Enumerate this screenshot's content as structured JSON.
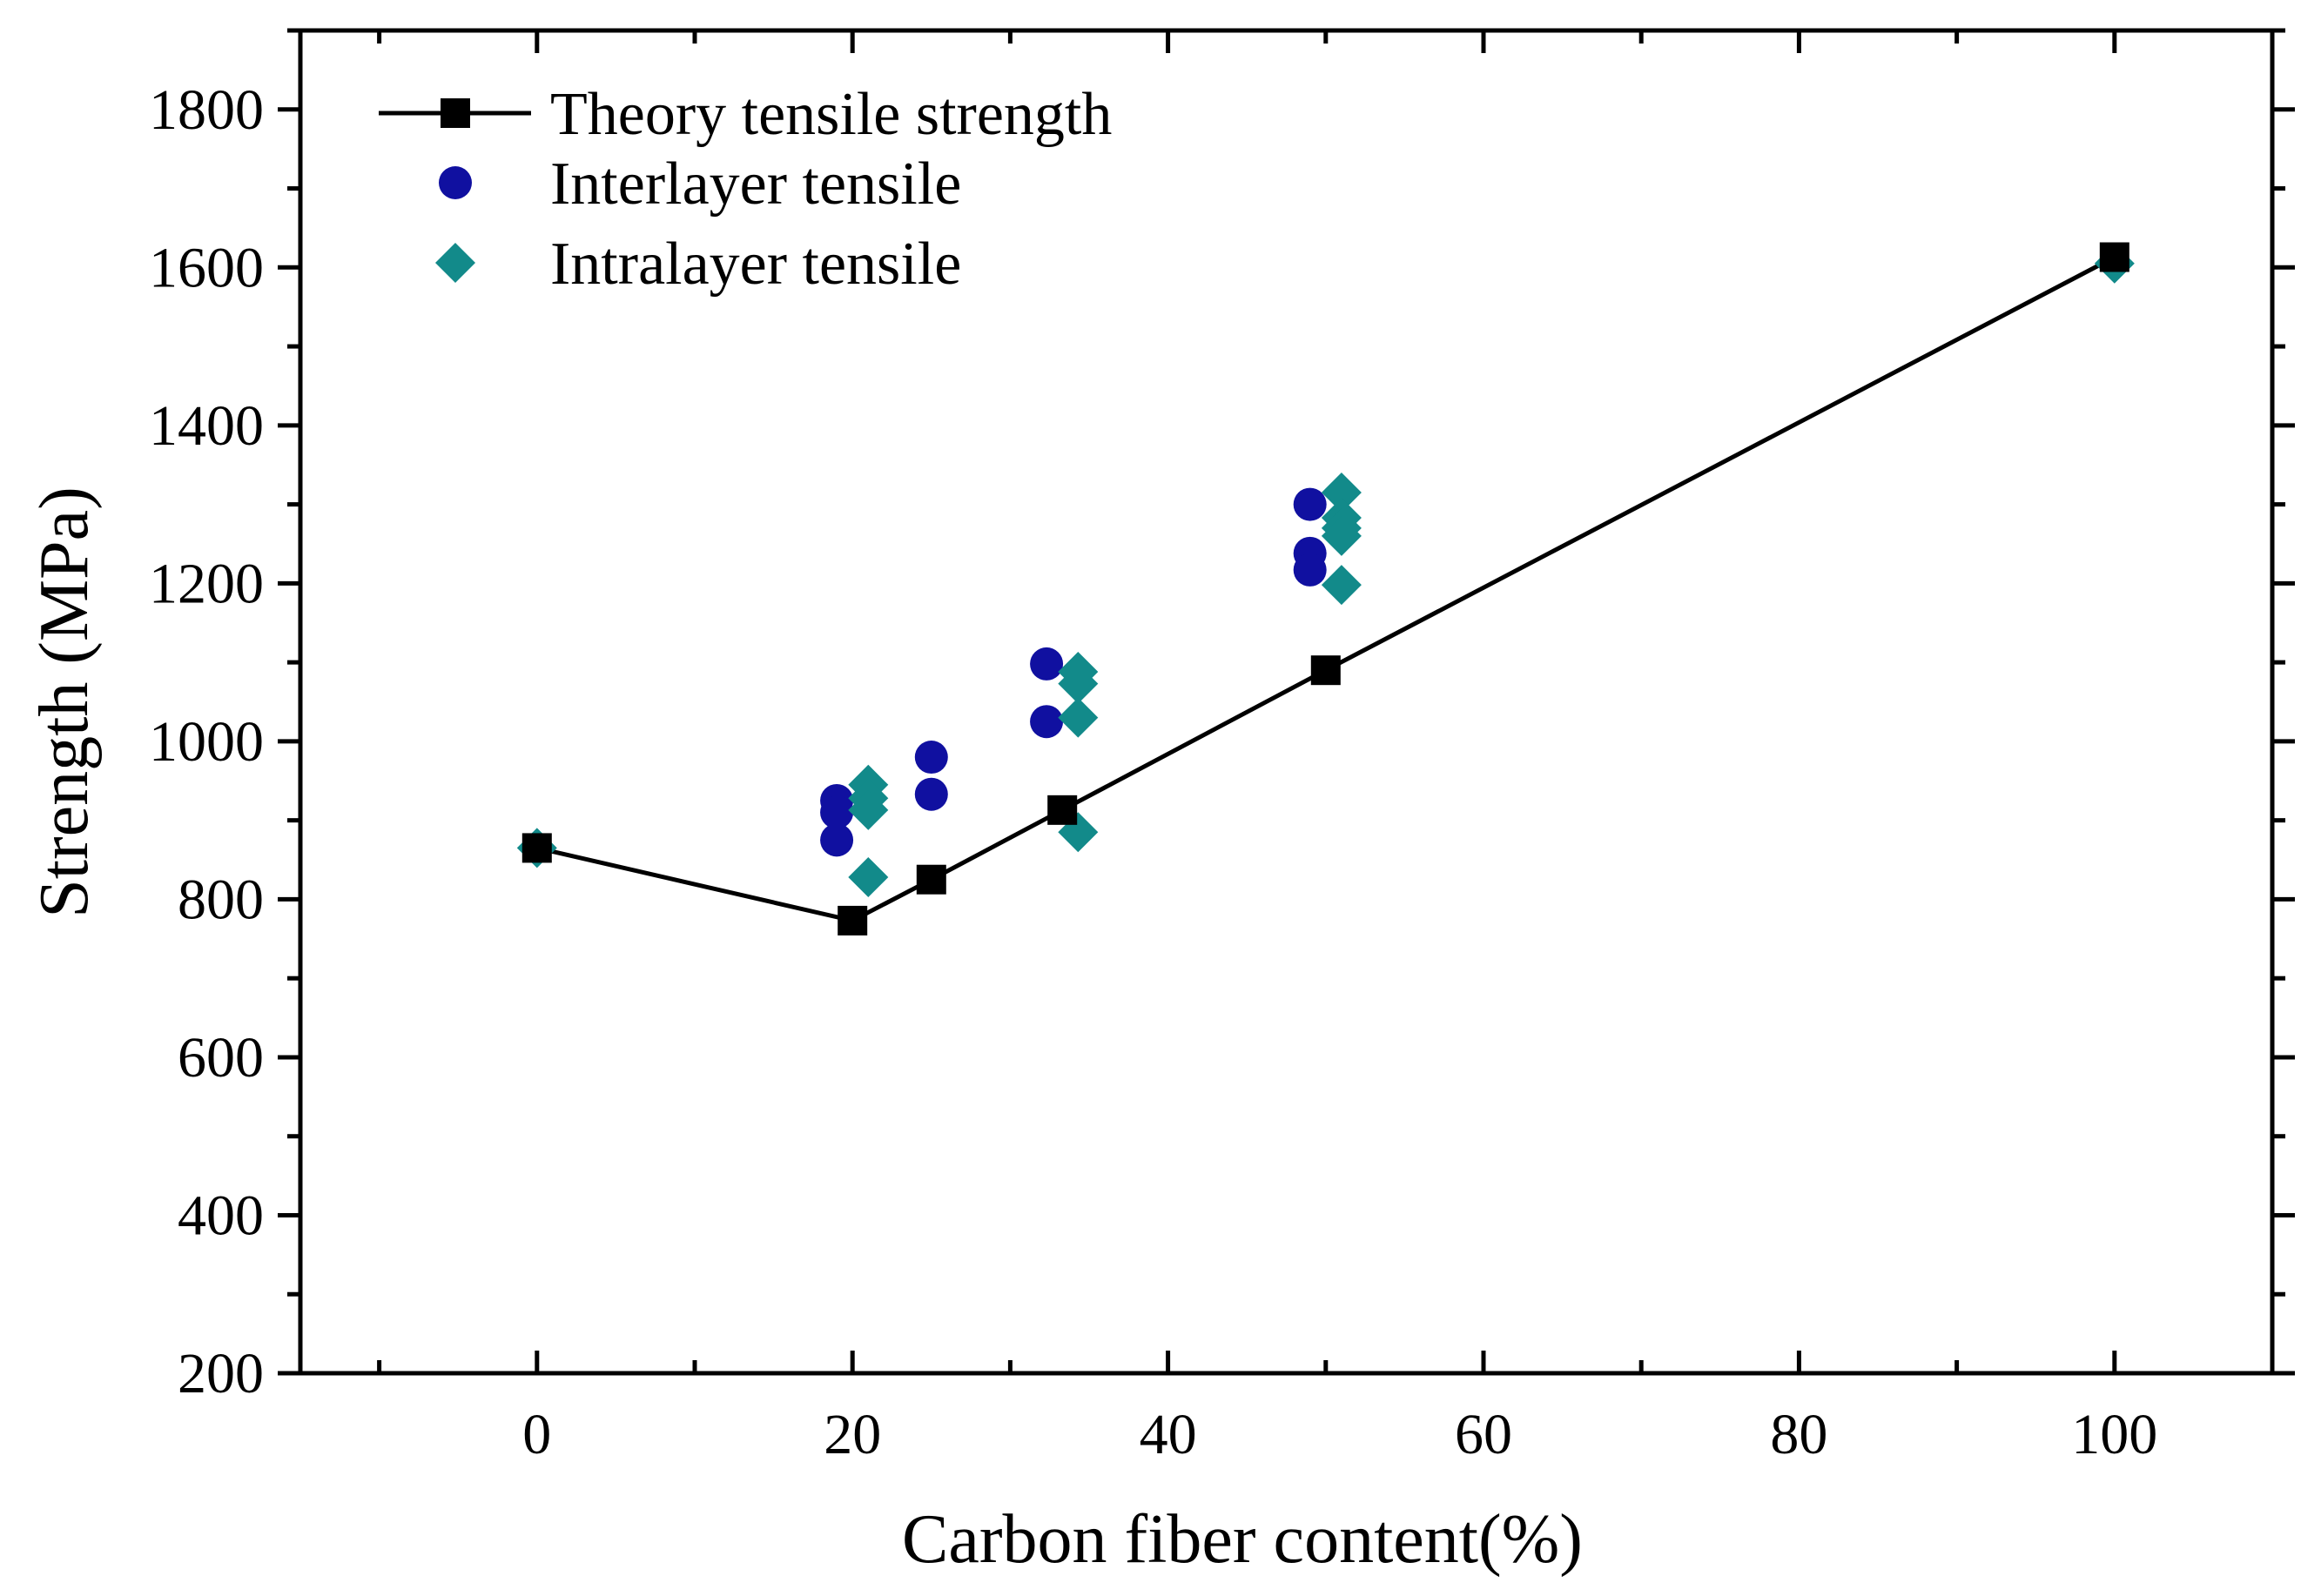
{
  "chart_data": {
    "type": "scatter",
    "xlabel": "Carbon fiber content(%)",
    "ylabel": "Strength (MPa)",
    "xlim": [
      -15,
      110
    ],
    "ylim": [
      200,
      1900
    ],
    "xticks": [
      0,
      20,
      40,
      60,
      80,
      100
    ],
    "yticks": [
      200,
      400,
      600,
      800,
      1000,
      1200,
      1400,
      1600,
      1800
    ],
    "x_minor_step": 10,
    "y_minor_step": 100,
    "grid": false,
    "legend_position": "top-left",
    "series": [
      {
        "name": "Theory tensile strength",
        "kind": "line-square",
        "color": "#000000",
        "points": [
          [
            0,
            865
          ],
          [
            20,
            773
          ],
          [
            25,
            825
          ],
          [
            33.3,
            913
          ],
          [
            50,
            1090
          ],
          [
            100,
            1613
          ]
        ]
      },
      {
        "name": "Interlayer tensile",
        "kind": "circle",
        "color": "#1010a0",
        "points": [
          [
            19,
            925
          ],
          [
            19,
            910
          ],
          [
            19,
            875
          ],
          [
            25,
            980
          ],
          [
            25,
            933
          ],
          [
            32.3,
            1098
          ],
          [
            32.3,
            1025
          ],
          [
            49,
            1300
          ],
          [
            49,
            1238
          ],
          [
            49,
            1217
          ]
        ]
      },
      {
        "name": "Intralayer tensile",
        "kind": "diamond",
        "color": "#128a8a",
        "points": [
          [
            0,
            865
          ],
          [
            21,
            945
          ],
          [
            21,
            928
          ],
          [
            21,
            913
          ],
          [
            21,
            828
          ],
          [
            34.3,
            1088
          ],
          [
            34.3,
            1073
          ],
          [
            34.3,
            1030
          ],
          [
            34.3,
            885
          ],
          [
            51,
            1315
          ],
          [
            51,
            1283
          ],
          [
            51,
            1270
          ],
          [
            51,
            1260
          ],
          [
            51,
            1198
          ],
          [
            100,
            1605
          ]
        ]
      }
    ]
  }
}
